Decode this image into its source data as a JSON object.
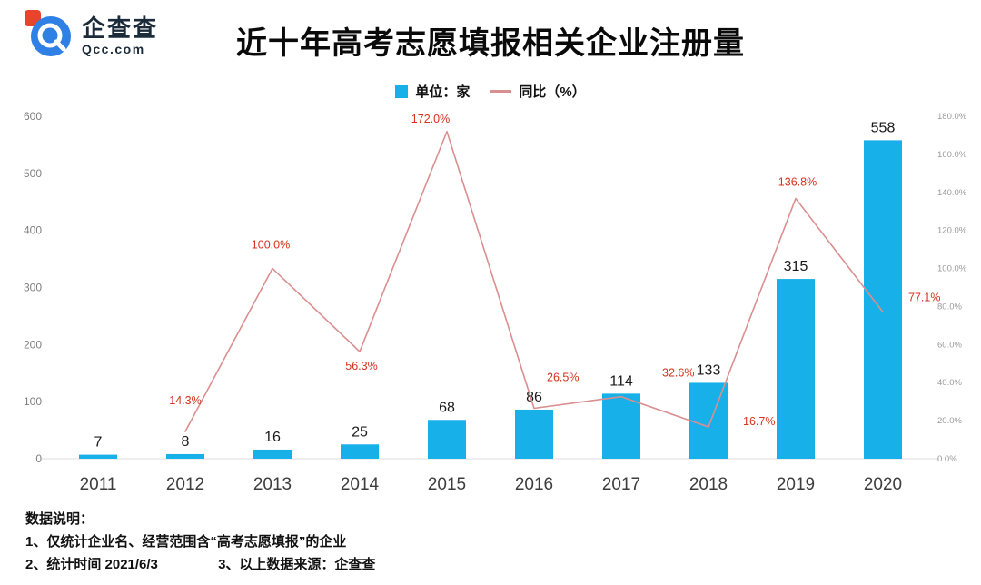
{
  "header": {
    "logo": {
      "brand": "企查查",
      "domain": "Qcc.com",
      "icon": "qcc-logo-icon",
      "brand_color": "#1b2b39",
      "icon_blue": "#2f80e4",
      "icon_red": "#e8432d"
    },
    "title": "近十年高考志愿填报相关企业注册量"
  },
  "legend": {
    "bar_label": "单位：家",
    "line_label": "同比（%）"
  },
  "chart_data": {
    "type": "bar+line",
    "title": "近十年高考志愿填报相关企业注册量",
    "categories": [
      "2011",
      "2012",
      "2013",
      "2014",
      "2015",
      "2016",
      "2017",
      "2018",
      "2019",
      "2020"
    ],
    "bar_series": {
      "name": "单位：家",
      "color": "#17b0e9",
      "values": [
        7,
        8,
        16,
        25,
        68,
        86,
        114,
        133,
        315,
        558
      ]
    },
    "line_series": {
      "name": "同比（%）",
      "color": "#d98f8f",
      "label_color": "#d7321e",
      "values": [
        null,
        14.3,
        100.0,
        56.3,
        172.0,
        26.5,
        32.6,
        16.7,
        136.8,
        77.1
      ],
      "labels": [
        null,
        "14.3%",
        "100.0%",
        "56.3%",
        "172.0%",
        "26.5%",
        "32.6%",
        "16.7%",
        "136.8%",
        "77.1%"
      ],
      "label_offsets": [
        null,
        [
          0,
          -30,
          "middle"
        ],
        [
          -2,
          -22,
          "middle"
        ],
        [
          2,
          20,
          "middle"
        ],
        [
          -18,
          -10,
          "middle"
        ],
        [
          14,
          -30,
          "start"
        ],
        [
          45,
          -22,
          "start"
        ],
        [
          38,
          -2,
          "start"
        ],
        [
          2,
          -14,
          "middle"
        ],
        [
          28,
          -12,
          "start"
        ]
      ]
    },
    "left_axis": {
      "min": 0,
      "max": 600,
      "ticks": [
        0,
        100,
        200,
        300,
        400,
        500,
        600
      ]
    },
    "right_axis": {
      "min": 0,
      "max": 180,
      "tick_labels": [
        "0.0%",
        "20.0%",
        "40.0%",
        "60.0%",
        "80.0%",
        "100.0%",
        "120.0%",
        "140.0%",
        "160.0%",
        "180.0%"
      ]
    },
    "grid": false,
    "legend_position": "top-center"
  },
  "footer": {
    "heading": "数据说明：",
    "line1": "1、仅统计企业名、经营范围含“高考志愿填报”的企业",
    "line2": "2、统计时间 2021/6/3",
    "line3": "3、以上数据来源：企查查"
  }
}
